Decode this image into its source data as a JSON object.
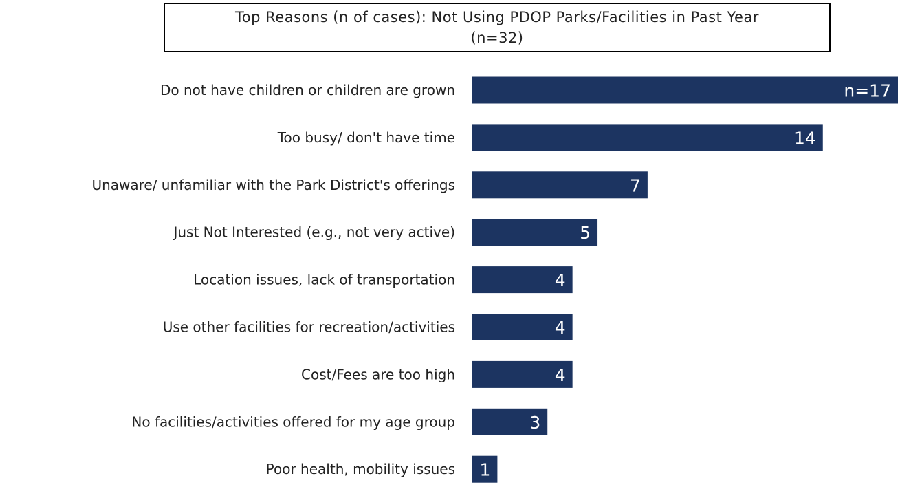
{
  "chart_data": {
    "type": "bar",
    "orientation": "horizontal",
    "title": "Top Reasons (n of cases): Not Using PDOP Parks/Facilities in Past Year\n(n=32)",
    "categories": [
      "Do not have children or children are grown",
      "Too busy/ don't have time",
      "Unaware/ unfamiliar with the Park District's offerings",
      "Just Not Interested (e.g., not very active)",
      "Location issues, lack of transportation",
      "Use other facilities for recreation/activities",
      "Cost/Fees are too high",
      "No facilities/activities offered for my age group",
      "Poor health, mobility issues"
    ],
    "values": [
      17,
      14,
      7,
      5,
      4,
      4,
      4,
      3,
      1
    ],
    "value_labels": [
      "n=17",
      "14",
      "7",
      "5",
      "4",
      "4",
      "4",
      "3",
      "1"
    ],
    "xlim": [
      0,
      17
    ],
    "grid": false,
    "legend": "none",
    "bar_color": "#1c3461",
    "axis_line_color": "#cccccc"
  }
}
